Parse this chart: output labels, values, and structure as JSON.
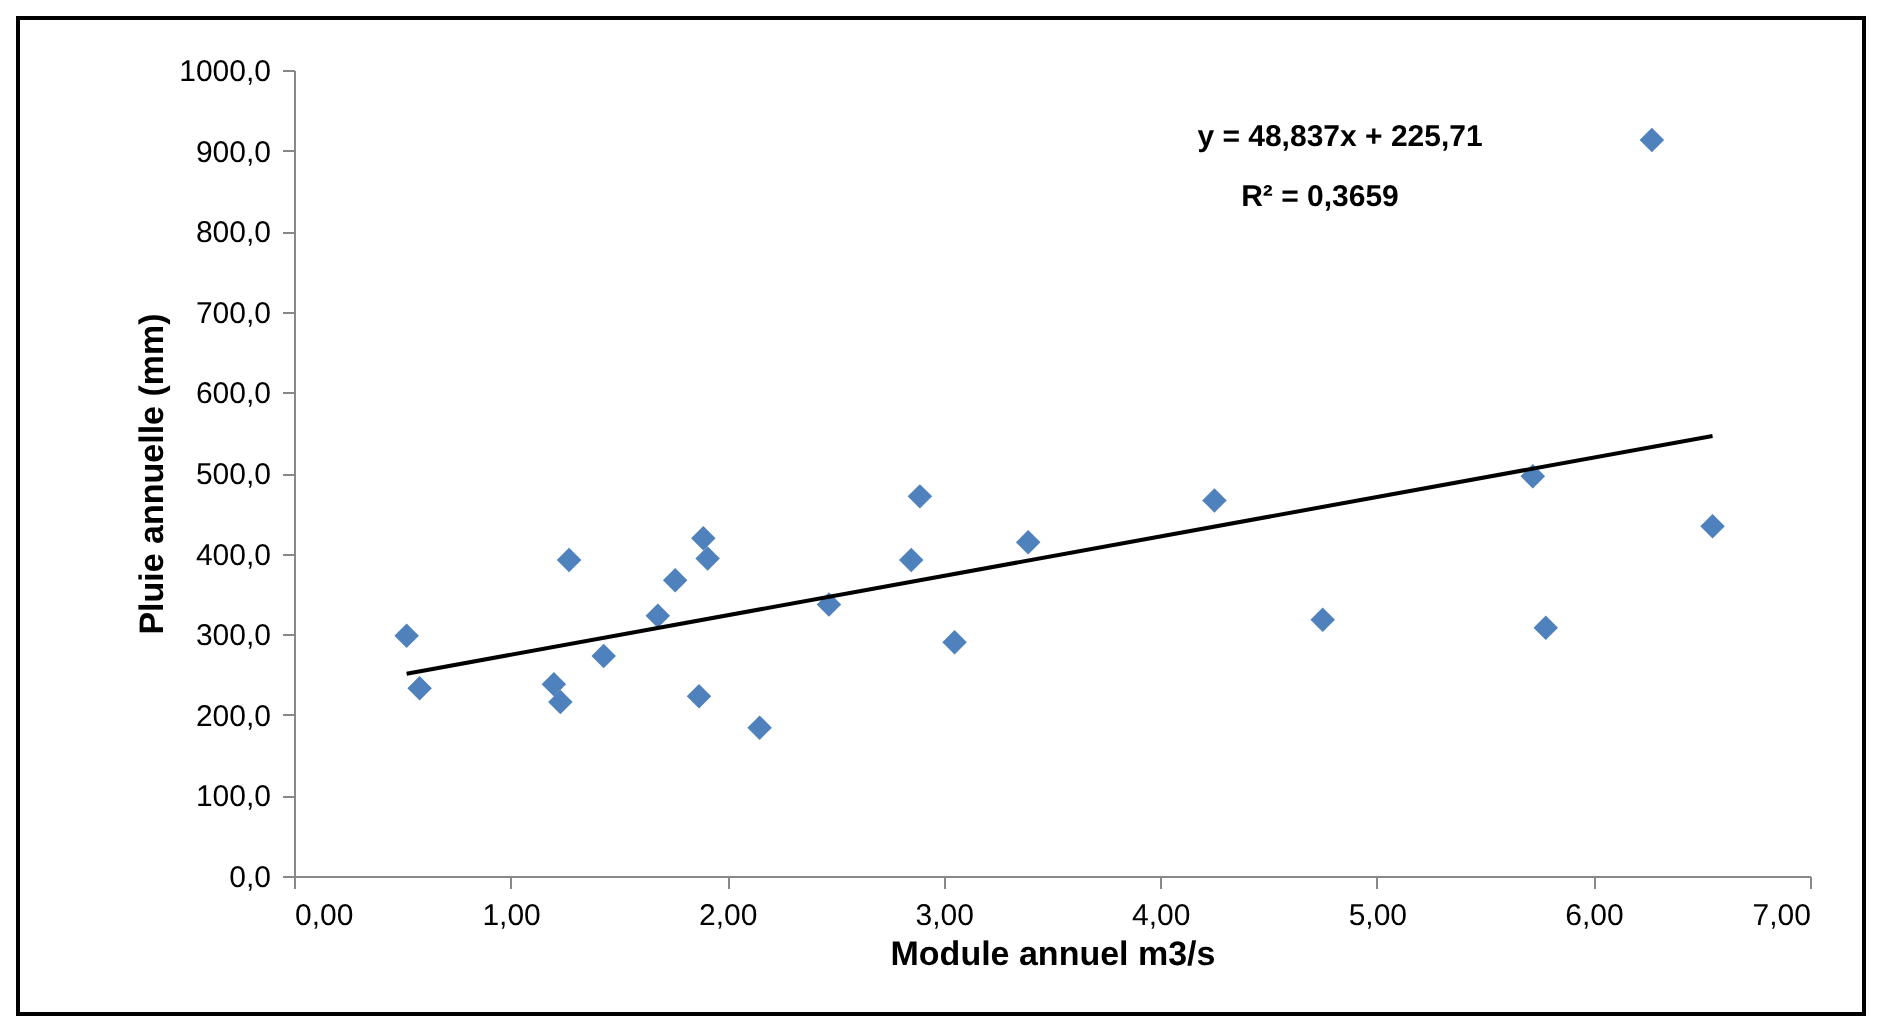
{
  "chart_data": {
    "type": "scatter",
    "xlabel": "Module annuel m3/s",
    "ylabel": "Pluie annuelle (mm)",
    "annotations": [
      "y = 48,837x + 225,71",
      "R² = 0,3659"
    ],
    "series": [
      {
        "color": "#4f81bd",
        "marker": "diamond",
        "x": [
          0.52,
          0.58,
          1.2,
          1.23,
          1.27,
          1.43,
          1.68,
          1.76,
          1.89,
          1.91,
          1.87,
          2.15,
          2.47,
          2.85,
          2.89,
          3.05,
          3.39,
          4.25,
          4.75,
          5.72,
          5.78,
          6.27,
          6.55
        ],
        "values": [
          298,
          233,
          238,
          216,
          392,
          273,
          323,
          367,
          419,
          394,
          223,
          184,
          337,
          392,
          471,
          290,
          414,
          466,
          318,
          496,
          308,
          913,
          434
        ]
      },
      {
        "type": "line",
        "color": "#000000",
        "marker": "none",
        "x": [
          0.52,
          6.55
        ],
        "values": [
          251,
          546
        ]
      }
    ],
    "xlim": [
      0,
      7
    ],
    "xticks": [
      {
        "value": 0,
        "label": "0,00"
      },
      {
        "value": 1,
        "label": "1,00"
      },
      {
        "value": 2,
        "label": "2,00"
      },
      {
        "value": 3,
        "label": "3,00"
      },
      {
        "value": 4,
        "label": "4,00"
      },
      {
        "value": 5,
        "label": "5,00"
      },
      {
        "value": 6,
        "label": "6,00"
      },
      {
        "value": 7,
        "label": "7,00"
      }
    ],
    "ylim": [
      0,
      1000
    ],
    "yticks": [
      {
        "value": 0,
        "label": "0,0"
      },
      {
        "value": 100,
        "label": "100,0"
      },
      {
        "value": 200,
        "label": "200,0"
      },
      {
        "value": 300,
        "label": "300,0"
      },
      {
        "value": 400,
        "label": "400,0"
      },
      {
        "value": 500,
        "label": "500,0"
      },
      {
        "value": 600,
        "label": "600,0"
      },
      {
        "value": 700,
        "label": "700,0"
      },
      {
        "value": 800,
        "label": "800,0"
      },
      {
        "value": 900,
        "label": "900,0"
      },
      {
        "value": 1000,
        "label": "1000,0"
      }
    ],
    "grid": false
  }
}
